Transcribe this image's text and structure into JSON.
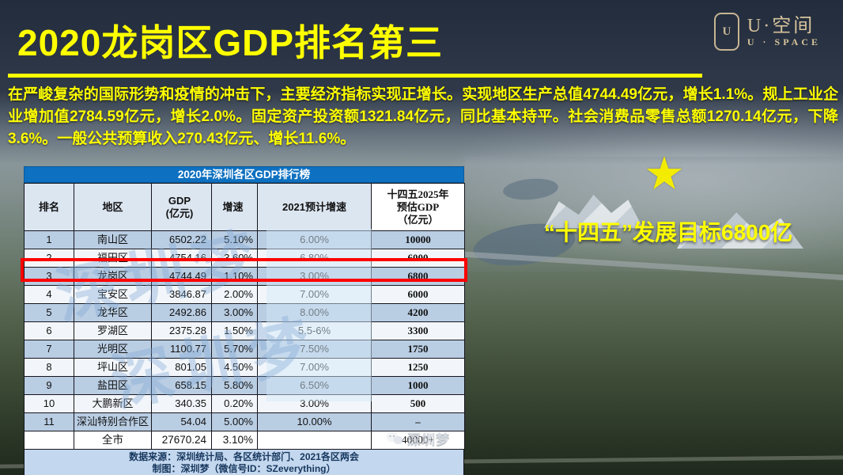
{
  "slide": {
    "title": "2020龙岗区GDP排名第三",
    "intro": "在严峻复杂的国际形势和疫情的冲击下，主要经济指标实现正增长。实现地区生产总值4744.49亿元，增长1.1%。规上工业企业增加值2784.59亿元，增长2.0%。固定资产投资额1321.84亿元，同比基本持平。社会消费品零售总额1270.14亿元，下降3.6%。一般公共预算收入270.43亿元、增长11.6%。",
    "goal_callout": "“十四五”发展目标6800亿",
    "star_icon": "★"
  },
  "logo": {
    "badge_letter": "U",
    "name_cn": "U·空间",
    "name_en": "U · SPACE"
  },
  "table": {
    "title": "2020年深圳各区GDP排行榜",
    "columns": [
      "排名",
      "地区",
      "GDP\n(亿元)",
      "增速",
      "2021预计增速",
      "十四五2025年\n预估GDP\n（亿元）"
    ],
    "rows": [
      [
        "1",
        "南山区",
        "6502.22",
        "5.10%",
        "6.00%",
        "10000"
      ],
      [
        "2",
        "福田区",
        "4754.16",
        "3.60%",
        "6.80%",
        "6000"
      ],
      [
        "3",
        "龙岗区",
        "4744.49",
        "1.10%",
        "3.00%",
        "6800"
      ],
      [
        "4",
        "宝安区",
        "3846.87",
        "2.00%",
        "7.00%",
        "6000"
      ],
      [
        "5",
        "龙华区",
        "2492.86",
        "3.00%",
        "8.00%",
        "4200"
      ],
      [
        "6",
        "罗湖区",
        "2375.28",
        "1.50%",
        "5.5-6%",
        "3300"
      ],
      [
        "7",
        "光明区",
        "1100.77",
        "5.70%",
        "7.50%",
        "1750"
      ],
      [
        "8",
        "坪山区",
        "801.05",
        "4.50%",
        "7.00%",
        "1250"
      ],
      [
        "9",
        "盐田区",
        "658.15",
        "5.80%",
        "6.50%",
        "1000"
      ],
      [
        "10",
        "大鹏新区",
        "340.35",
        "0.20%",
        "3.00%",
        "500"
      ],
      [
        "11",
        "深汕特别合作区",
        "54.04",
        "5.00%",
        "10.00%",
        "–"
      ],
      [
        "",
        "全市",
        "27670.24",
        "3.10%",
        "",
        "40000+"
      ]
    ],
    "highlighted_rank": "3",
    "source_line1": "数据来源：深圳统计局、各区统计部门、2021各区两会",
    "source_line2": "制图：深圳梦（微信号ID：SZeverything）",
    "watermark_text": "深圳梦"
  },
  "footer_watermark": {
    "label": "深圳梦"
  },
  "colors": {
    "accent_yellow": "#ffff00",
    "table_title_blue": "#0d70c0",
    "row_alt_blue": "#b9cde3",
    "header_row_bg": "#dce6f1",
    "footer_bg": "#c3d7ee",
    "footer_text": "#17375e",
    "highlight_red": "#ff0000",
    "logo_tan": "#d8c49c"
  },
  "chart_data": {
    "type": "table",
    "title": "2020年深圳各区GDP排行榜",
    "columns": [
      "排名",
      "地区",
      "GDP(亿元)",
      "增速",
      "2021预计增速",
      "十四五2025年预估GDP（亿元）"
    ],
    "rows": [
      [
        "1",
        "南山区",
        "6502.22",
        "5.10%",
        "6.00%",
        "10000"
      ],
      [
        "2",
        "福田区",
        "4754.16",
        "3.60%",
        "6.80%",
        "6000"
      ],
      [
        "3",
        "龙岗区",
        "4744.49",
        "1.10%",
        "3.00%",
        "6800"
      ],
      [
        "4",
        "宝安区",
        "3846.87",
        "2.00%",
        "7.00%",
        "6000"
      ],
      [
        "5",
        "龙华区",
        "2492.86",
        "3.00%",
        "8.00%",
        "4200"
      ],
      [
        "6",
        "罗湖区",
        "2375.28",
        "1.50%",
        "5.5-6%",
        "3300"
      ],
      [
        "7",
        "光明区",
        "1100.77",
        "5.70%",
        "7.50%",
        "1750"
      ],
      [
        "8",
        "坪山区",
        "801.05",
        "4.50%",
        "7.00%",
        "1250"
      ],
      [
        "9",
        "盐田区",
        "658.15",
        "5.80%",
        "6.50%",
        "1000"
      ],
      [
        "10",
        "大鹏新区",
        "340.35",
        "0.20%",
        "3.00%",
        "500"
      ],
      [
        "11",
        "深汕特别合作区",
        "54.04",
        "5.00%",
        "10.00%",
        "–"
      ],
      [
        "",
        "全市",
        "27670.24",
        "3.10%",
        "",
        "40000+"
      ]
    ]
  }
}
